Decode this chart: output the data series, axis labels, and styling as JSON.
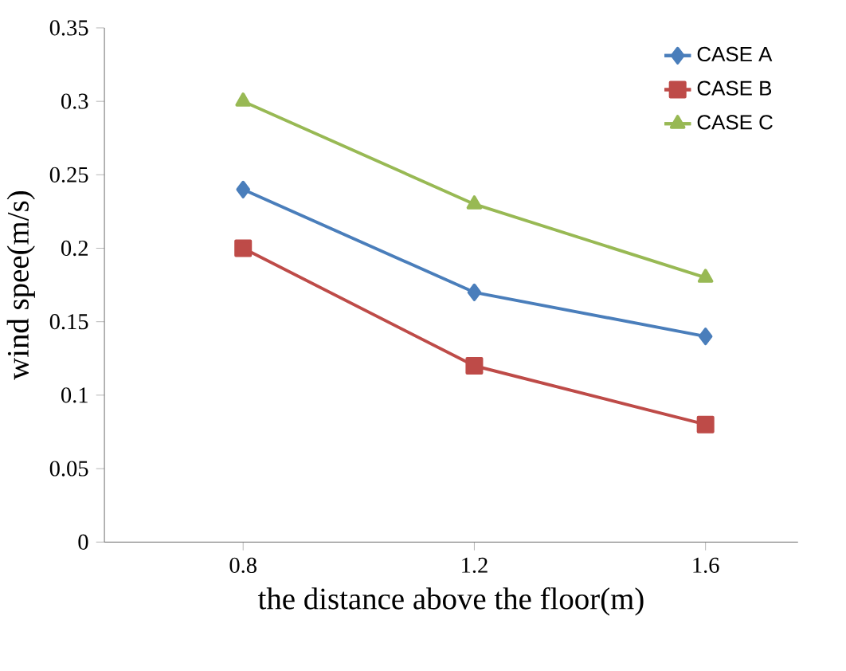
{
  "chart_data": {
    "type": "line",
    "xlabel": "the distance above the floor(m)",
    "ylabel": "wind spee(m/s)",
    "categories": [
      "0.8",
      "1.2",
      "1.6"
    ],
    "series": [
      {
        "name": "CASE A",
        "color": "#4a7ebb",
        "marker": "diamond",
        "values": [
          0.24,
          0.17,
          0.14
        ]
      },
      {
        "name": "CASE B",
        "color": "#be4b48",
        "marker": "square",
        "values": [
          0.2,
          0.12,
          0.08
        ]
      },
      {
        "name": "CASE C",
        "color": "#98b954",
        "marker": "triangle",
        "values": [
          0.3,
          0.23,
          0.18
        ]
      }
    ],
    "ylim": [
      0,
      0.35
    ],
    "yticks": [
      0,
      0.05,
      0.1,
      0.15,
      0.2,
      0.25,
      0.3,
      0.35
    ],
    "grid": false,
    "legend": "top right"
  }
}
